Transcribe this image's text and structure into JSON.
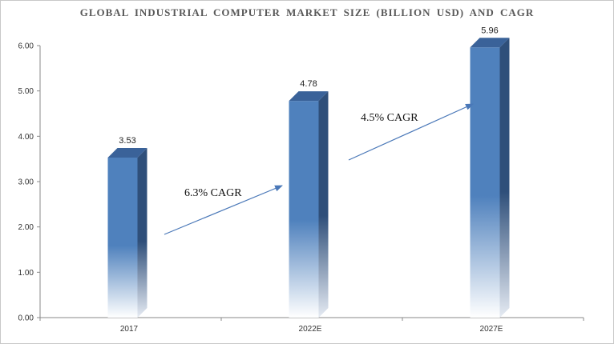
{
  "chart_data": {
    "type": "bar",
    "title": "GLOBAL INDUSTRIAL  COMPUTER  MARKET  SIZE (BILLION USD) AND CAGR",
    "categories": [
      "2017",
      "2022E",
      "2027E"
    ],
    "values": [
      3.53,
      4.78,
      5.96
    ],
    "data_labels": [
      "3.53",
      "4.78",
      "5.96"
    ],
    "y_ticks": [
      "0.00",
      "1.00",
      "2.00",
      "3.00",
      "4.00",
      "5.00",
      "6.00"
    ],
    "ylim": [
      0,
      6
    ],
    "xlabel": "",
    "ylabel": "",
    "grid": false,
    "legend": "none",
    "annotations": [
      {
        "text": "6.3% CAGR",
        "from": 0,
        "to": 1
      },
      {
        "text": "4.5% CAGR",
        "from": 1,
        "to": 2
      }
    ],
    "colors": {
      "bar_front": "#4f81bd",
      "bar_side": "#2f4f7a",
      "bar_top": "#3a6299",
      "arrow": "#4a78b8",
      "axis": "#888888"
    }
  }
}
